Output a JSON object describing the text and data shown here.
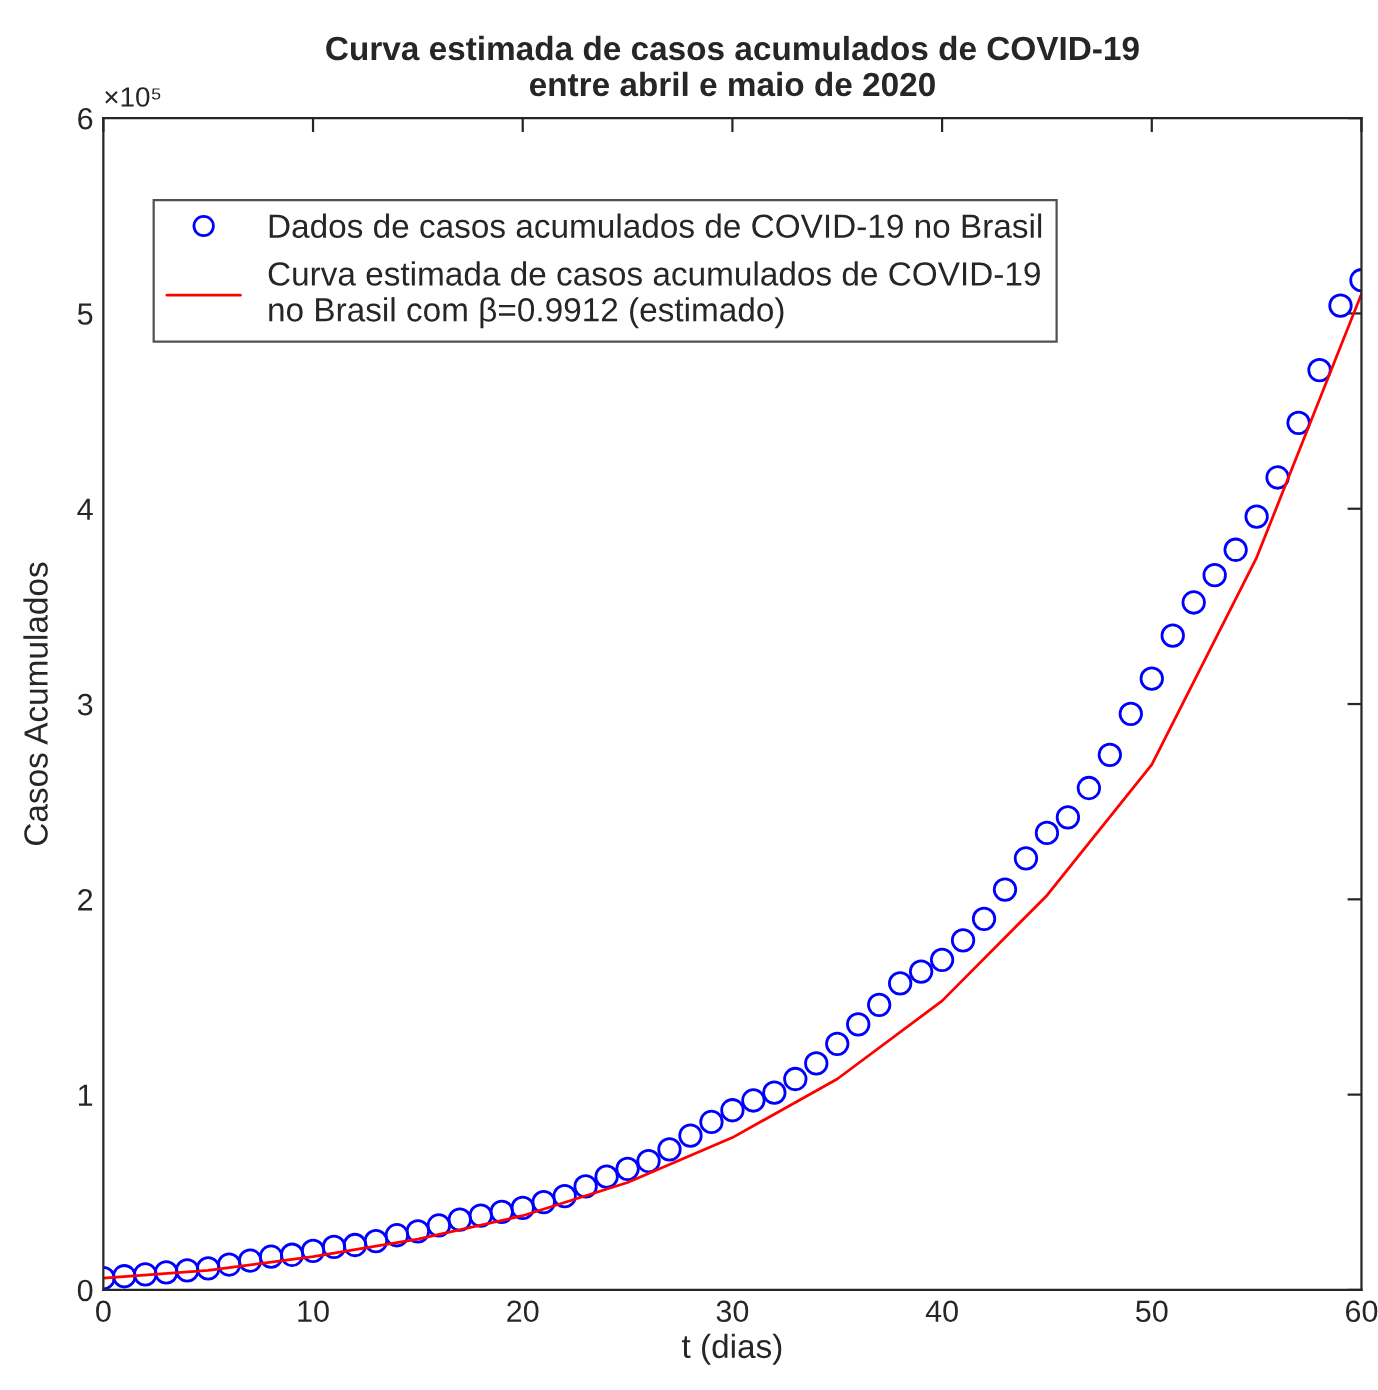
{
  "chart_data": {
    "type": "scatter",
    "title": "Curva estimada de casos acumulados de COVID-19\nentre abril e maio de 2020",
    "xlabel": "t (dias)",
    "ylabel": "Casos Acumulados",
    "annotations": [
      "×10⁵"
    ],
    "xlim": [
      0,
      60
    ],
    "xticks": [
      0,
      10,
      20,
      30,
      40,
      50,
      60
    ],
    "ylim": [
      0,
      6
    ],
    "yticks": [
      0,
      1,
      2,
      3,
      4,
      5,
      6
    ],
    "grid": false,
    "legend": "top left",
    "series": [
      {
        "name": "Dados de casos acumulados de COVID-19 no Brasil",
        "marker": "circle",
        "color": "#0000ff",
        "x": [
          0,
          1,
          2,
          3,
          4,
          5,
          6,
          7,
          8,
          9,
          10,
          11,
          12,
          13,
          14,
          15,
          16,
          17,
          18,
          19,
          20,
          21,
          22,
          23,
          24,
          25,
          26,
          27,
          28,
          29,
          30,
          31,
          32,
          33,
          34,
          35,
          36,
          37,
          38,
          39,
          40,
          41,
          42,
          43,
          44,
          45,
          46,
          47,
          48,
          49,
          50,
          51,
          52,
          53,
          54,
          55,
          56,
          57,
          58,
          59,
          60
        ],
        "values": [
          0.06,
          0.07,
          0.08,
          0.09,
          0.1,
          0.11,
          0.13,
          0.15,
          0.17,
          0.18,
          0.2,
          0.22,
          0.23,
          0.25,
          0.28,
          0.3,
          0.33,
          0.36,
          0.38,
          0.4,
          0.42,
          0.45,
          0.48,
          0.53,
          0.58,
          0.62,
          0.66,
          0.72,
          0.79,
          0.86,
          0.92,
          0.97,
          1.01,
          1.08,
          1.16,
          1.26,
          1.36,
          1.46,
          1.57,
          1.63,
          1.69,
          1.79,
          1.9,
          2.05,
          2.21,
          2.34,
          2.42,
          2.57,
          2.74,
          2.95,
          3.13,
          3.35,
          3.52,
          3.66,
          3.79,
          3.96,
          4.16,
          4.44,
          4.71,
          5.04,
          5.17
        ]
      },
      {
        "name": "Curva estimada de casos acumulados de COVID-19\nno Brasil com β=0.9912 (estimado)",
        "type": "line",
        "marker": "none",
        "line_style": "solid",
        "color": "#ff0000",
        "x": [
          0,
          5,
          10,
          15,
          20,
          25,
          30,
          35,
          40,
          45,
          50,
          55,
          60
        ],
        "values": [
          0.06,
          0.1,
          0.17,
          0.26,
          0.38,
          0.55,
          0.78,
          1.08,
          1.48,
          2.02,
          2.69,
          3.75,
          5.1
        ]
      }
    ]
  }
}
